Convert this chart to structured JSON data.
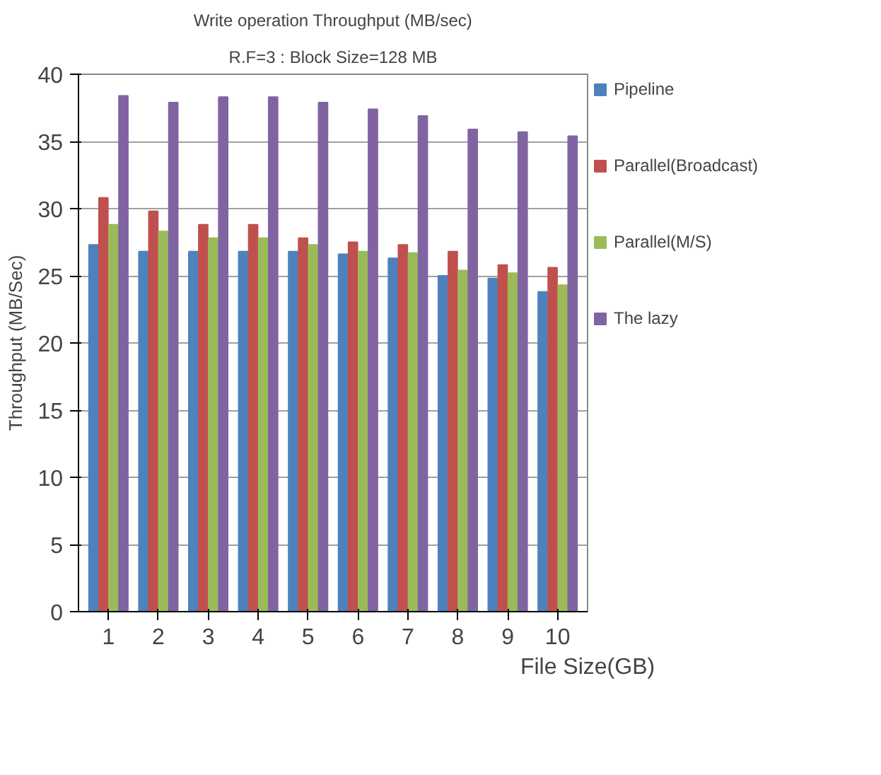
{
  "chart_data": {
    "type": "bar",
    "title": "Write operation Throughput (MB/sec)",
    "subtitle": "R.F=3 : Block Size=128 MB",
    "xlabel": "File Size(GB)",
    "ylabel": "Throughput (MB/Sec)",
    "categories": [
      "1",
      "2",
      "3",
      "4",
      "5",
      "6",
      "7",
      "8",
      "9",
      "10"
    ],
    "series": [
      {
        "name": "Pipeline",
        "color": "#4f81bd",
        "values": [
          27.3,
          26.8,
          26.8,
          26.8,
          26.8,
          26.6,
          26.3,
          25.0,
          24.8,
          23.8
        ]
      },
      {
        "name": "Parallel(Broadcast)",
        "color": "#c0504d",
        "values": [
          30.8,
          29.8,
          28.8,
          28.8,
          27.8,
          27.5,
          27.3,
          26.8,
          25.8,
          25.6
        ]
      },
      {
        "name": "Parallel(M/S)",
        "color": "#9bbb59",
        "values": [
          28.8,
          28.3,
          27.8,
          27.8,
          27.3,
          26.8,
          26.7,
          25.4,
          25.2,
          24.3
        ]
      },
      {
        "name": "The lazy",
        "color": "#8064a2",
        "values": [
          38.4,
          37.9,
          38.3,
          38.3,
          37.9,
          37.4,
          36.9,
          35.9,
          35.7,
          35.4
        ]
      }
    ],
    "ylim": [
      0,
      40
    ],
    "yticks": [
      0,
      5,
      10,
      15,
      20,
      25,
      30,
      35,
      40
    ],
    "grid": "y",
    "legend": "right"
  }
}
